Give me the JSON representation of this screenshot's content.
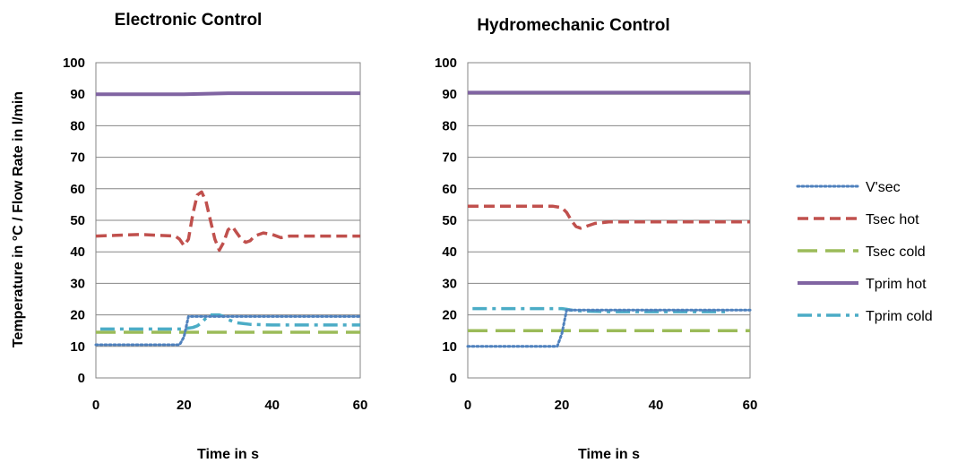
{
  "ylabel": "Temperature in °C / Flow Rate in l/min",
  "chart_data": [
    {
      "type": "line",
      "title": "Electronic Control",
      "xlabel": "Time in s",
      "xlim": [
        0,
        60
      ],
      "ylim": [
        0,
        100
      ],
      "xticks": [
        "0",
        "20",
        "40",
        "60"
      ],
      "yticks": [
        "0",
        "10",
        "20",
        "30",
        "40",
        "50",
        "60",
        "70",
        "80",
        "90",
        "100"
      ],
      "grid": "horizontal",
      "series": [
        {
          "name": "V'sec",
          "x": [
            0,
            19,
            20,
            21,
            60
          ],
          "y": [
            10.5,
            10.5,
            13,
            19.5,
            19.5
          ]
        },
        {
          "name": "Tsec hot",
          "x": [
            0,
            10,
            18,
            19,
            20,
            21,
            22,
            23,
            24,
            25,
            26,
            27,
            28,
            29,
            30,
            31,
            32,
            33,
            34,
            35,
            36,
            38,
            40,
            42,
            44,
            50,
            60
          ],
          "y": [
            45,
            45.5,
            45,
            44,
            42,
            44,
            52,
            58,
            59,
            56,
            50,
            44,
            40.5,
            43,
            47,
            48,
            46,
            44,
            43,
            43.5,
            45,
            46,
            45.5,
            44.5,
            45,
            45,
            45
          ]
        },
        {
          "name": "Tsec cold",
          "x": [
            0,
            60
          ],
          "y": [
            14.5,
            14.5
          ]
        },
        {
          "name": "Tprim hot",
          "x": [
            0,
            10,
            20,
            30,
            40,
            50,
            60
          ],
          "y": [
            90,
            90,
            90,
            90.3,
            90.3,
            90.3,
            90.3
          ]
        },
        {
          "name": "Tprim cold",
          "x": [
            1,
            10,
            15,
            19,
            20,
            21,
            22,
            23,
            24,
            25,
            26,
            27,
            28,
            29,
            30,
            32,
            35,
            40,
            45,
            50,
            55,
            60
          ],
          "y": [
            15.5,
            15.5,
            15.5,
            15.5,
            15.5,
            15.8,
            16,
            16.5,
            17.5,
            19,
            20,
            20,
            20,
            19.5,
            18.5,
            17.5,
            17,
            16.8,
            16.8,
            16.8,
            16.8,
            16.8
          ]
        }
      ]
    },
    {
      "type": "line",
      "title": "Hydromechanic Control",
      "xlabel": "Time in s",
      "xlim": [
        0,
        60
      ],
      "ylim": [
        0,
        100
      ],
      "xticks": [
        "0",
        "20",
        "40",
        "60"
      ],
      "yticks": [
        "0",
        "10",
        "20",
        "30",
        "40",
        "50",
        "60",
        "70",
        "80",
        "90",
        "100"
      ],
      "grid": "horizontal",
      "series": [
        {
          "name": "V'sec",
          "x": [
            0,
            19,
            20,
            21,
            60
          ],
          "y": [
            10,
            10,
            14,
            21.5,
            21.5
          ]
        },
        {
          "name": "Tsec hot",
          "x": [
            0,
            10,
            18,
            20,
            21,
            22,
            23,
            24,
            25,
            27,
            30,
            35,
            40,
            50,
            60
          ],
          "y": [
            54.5,
            54.5,
            54.5,
            54,
            52.5,
            50,
            48,
            47.5,
            48,
            49,
            49.5,
            49.5,
            49.5,
            49.5,
            49.5
          ]
        },
        {
          "name": "Tsec cold",
          "x": [
            0,
            60
          ],
          "y": [
            15,
            15
          ]
        },
        {
          "name": "Tprim hot",
          "x": [
            0,
            60
          ],
          "y": [
            90.5,
            90.5
          ]
        },
        {
          "name": "Tprim cold",
          "x": [
            1,
            10,
            19,
            20,
            21,
            22,
            25,
            30,
            40,
            50,
            55
          ],
          "y": [
            22,
            22,
            22,
            22,
            21.8,
            21.5,
            21.2,
            21,
            21,
            21,
            21
          ]
        }
      ]
    }
  ],
  "legend": {
    "placement": "right",
    "items": [
      {
        "label": "V'sec",
        "color": "#4f81bd",
        "style": "dotted"
      },
      {
        "label": "Tsec hot",
        "color": "#c0504d",
        "style": "dashed"
      },
      {
        "label": "Tsec cold",
        "color": "#9bbb59",
        "style": "long-dash"
      },
      {
        "label": "Tprim hot",
        "color": "#8064a2",
        "style": "solid"
      },
      {
        "label": "Tprim cold",
        "color": "#4bacc6",
        "style": "dash-dot"
      }
    ]
  }
}
